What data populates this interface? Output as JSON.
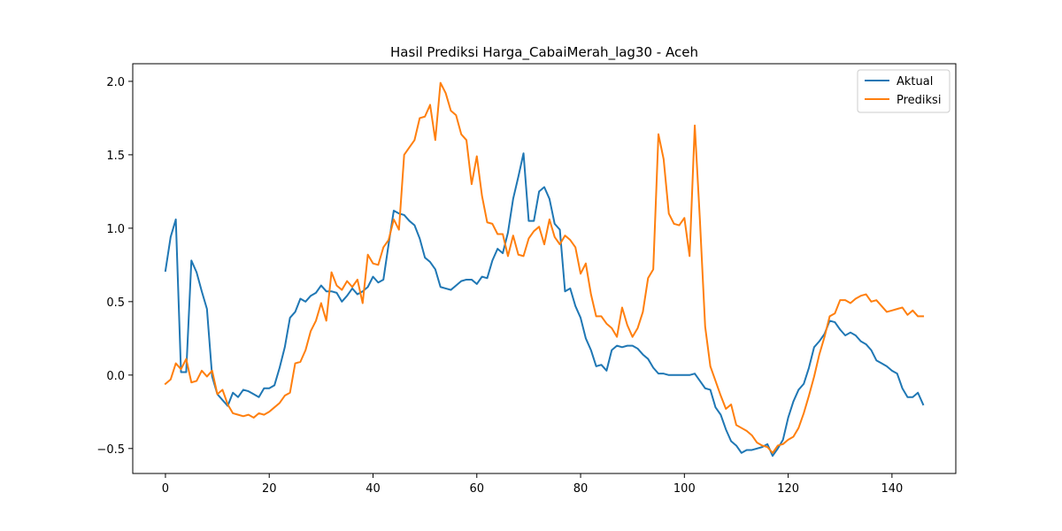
{
  "chart_data": {
    "type": "line",
    "title": "Hasil Prediksi Harga_CabaiMerah_lag30 - Aceh",
    "xlabel": "",
    "ylabel": "",
    "xlim": [
      -6.3,
      152.3
    ],
    "ylim": [
      -0.67,
      2.12
    ],
    "xticks": [
      0,
      20,
      40,
      60,
      80,
      100,
      120,
      140
    ],
    "yticks": [
      -0.5,
      0.0,
      0.5,
      1.0,
      1.5,
      2.0
    ],
    "ytick_labels": [
      "−0.5",
      "0.0",
      "0.5",
      "1.0",
      "1.5",
      "2.0"
    ],
    "grid": false,
    "legend_position": "top-right",
    "series": [
      {
        "name": "Aktual",
        "color": "#1f77b4",
        "values": [
          0.71,
          0.94,
          1.06,
          0.02,
          0.02,
          0.78,
          0.7,
          0.57,
          0.45,
          -0.01,
          -0.13,
          -0.17,
          -0.21,
          -0.12,
          -0.15,
          -0.1,
          -0.11,
          -0.13,
          -0.15,
          -0.09,
          -0.09,
          -0.07,
          0.05,
          0.19,
          0.39,
          0.43,
          0.52,
          0.5,
          0.54,
          0.56,
          0.61,
          0.57,
          0.57,
          0.56,
          0.5,
          0.54,
          0.59,
          0.55,
          0.57,
          0.6,
          0.67,
          0.63,
          0.65,
          0.89,
          1.12,
          1.1,
          1.09,
          1.05,
          1.02,
          0.93,
          0.8,
          0.77,
          0.72,
          0.6,
          0.59,
          0.58,
          0.61,
          0.64,
          0.65,
          0.65,
          0.62,
          0.67,
          0.66,
          0.78,
          0.86,
          0.83,
          0.97,
          1.2,
          1.35,
          1.51,
          1.05,
          1.05,
          1.25,
          1.28,
          1.2,
          1.03,
          0.99,
          0.57,
          0.59,
          0.47,
          0.39,
          0.25,
          0.17,
          0.06,
          0.07,
          0.03,
          0.17,
          0.2,
          0.19,
          0.2,
          0.2,
          0.18,
          0.14,
          0.11,
          0.05,
          0.01,
          0.01,
          0.0,
          0.0,
          0.0,
          0.0,
          0.0,
          0.01,
          -0.04,
          -0.09,
          -0.1,
          -0.22,
          -0.27,
          -0.37,
          -0.45,
          -0.48,
          -0.53,
          -0.51,
          -0.51,
          -0.5,
          -0.49,
          -0.47,
          -0.55,
          -0.5,
          -0.44,
          -0.29,
          -0.18,
          -0.1,
          -0.06,
          0.05,
          0.19,
          0.23,
          0.28,
          0.37,
          0.36,
          0.31,
          0.27,
          0.29,
          0.27,
          0.23,
          0.21,
          0.17,
          0.1,
          0.08,
          0.06,
          0.03,
          0.01,
          -0.09,
          -0.15,
          -0.15,
          -0.12,
          -0.2
        ]
      },
      {
        "name": "Prediksi",
        "color": "#ff7f0e",
        "values": [
          -0.06,
          -0.03,
          0.08,
          0.04,
          0.11,
          -0.05,
          -0.04,
          0.03,
          -0.01,
          0.03,
          -0.13,
          -0.1,
          -0.2,
          -0.26,
          -0.27,
          -0.28,
          -0.27,
          -0.29,
          -0.26,
          -0.27,
          -0.25,
          -0.22,
          -0.19,
          -0.14,
          -0.12,
          0.08,
          0.09,
          0.17,
          0.3,
          0.37,
          0.49,
          0.37,
          0.7,
          0.61,
          0.58,
          0.64,
          0.6,
          0.65,
          0.49,
          0.82,
          0.76,
          0.75,
          0.87,
          0.92,
          1.06,
          0.99,
          1.5,
          1.55,
          1.6,
          1.75,
          1.76,
          1.84,
          1.6,
          1.99,
          1.92,
          1.8,
          1.77,
          1.64,
          1.6,
          1.3,
          1.49,
          1.22,
          1.04,
          1.03,
          0.96,
          0.96,
          0.81,
          0.95,
          0.82,
          0.81,
          0.93,
          0.98,
          1.01,
          0.89,
          1.06,
          0.94,
          0.89,
          0.95,
          0.92,
          0.87,
          0.69,
          0.76,
          0.55,
          0.4,
          0.4,
          0.35,
          0.32,
          0.26,
          0.46,
          0.34,
          0.26,
          0.32,
          0.43,
          0.66,
          0.72,
          1.64,
          1.47,
          1.1,
          1.03,
          1.02,
          1.07,
          0.81,
          1.7,
          1.05,
          0.33,
          0.06,
          -0.04,
          -0.14,
          -0.23,
          -0.2,
          -0.34,
          -0.36,
          -0.38,
          -0.41,
          -0.46,
          -0.48,
          -0.49,
          -0.53,
          -0.48,
          -0.47,
          -0.44,
          -0.42,
          -0.36,
          -0.26,
          -0.14,
          -0.01,
          0.14,
          0.26,
          0.4,
          0.42,
          0.51,
          0.51,
          0.49,
          0.52,
          0.54,
          0.55,
          0.5,
          0.51,
          0.47,
          0.43,
          0.44,
          0.45,
          0.46,
          0.41,
          0.44,
          0.4,
          0.4
        ]
      }
    ]
  }
}
